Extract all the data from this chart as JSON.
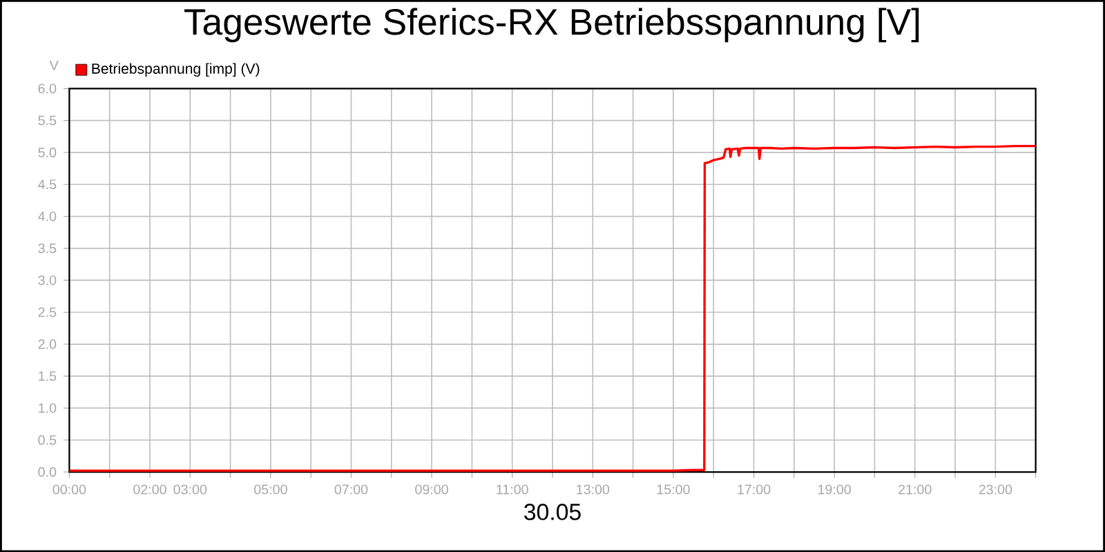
{
  "chart_data": {
    "type": "line",
    "title": "Tageswerte Sferics-RX Betriebsspannung [V]",
    "xlabel": "30.05",
    "ylabel": "V",
    "series": [
      {
        "name": "Betriebspannung [imp] (V)",
        "color": "#ff0000",
        "x": [
          0,
          2,
          4,
          6,
          8,
          10,
          12,
          14,
          15,
          15.5,
          15.77,
          15.78,
          15.9,
          16.0,
          16.15,
          16.25,
          16.3,
          16.4,
          16.42,
          16.45,
          16.6,
          16.63,
          16.66,
          16.8,
          17.0,
          17.12,
          17.14,
          17.17,
          17.4,
          17.7,
          18,
          18.5,
          19,
          19.5,
          20,
          20.5,
          21,
          21.5,
          22,
          22.5,
          23,
          23.5,
          24
        ],
        "values": [
          0.02,
          0.02,
          0.02,
          0.02,
          0.02,
          0.02,
          0.02,
          0.02,
          0.02,
          0.03,
          0.03,
          4.83,
          4.85,
          4.88,
          4.9,
          4.92,
          5.05,
          5.06,
          4.93,
          5.05,
          5.06,
          4.95,
          5.06,
          5.07,
          5.07,
          5.07,
          4.9,
          5.07,
          5.07,
          5.06,
          5.07,
          5.06,
          5.07,
          5.07,
          5.08,
          5.07,
          5.08,
          5.09,
          5.08,
          5.09,
          5.09,
          5.1,
          5.1
        ]
      }
    ],
    "xlim": [
      0,
      24
    ],
    "xticks": [
      {
        "value": 0,
        "label": "00:00"
      },
      {
        "value": 1,
        "label": null
      },
      {
        "value": 2,
        "label": "02:00"
      },
      {
        "value": 3,
        "label": "03:00"
      },
      {
        "value": 4,
        "label": null
      },
      {
        "value": 5,
        "label": "05:00"
      },
      {
        "value": 6,
        "label": null
      },
      {
        "value": 7,
        "label": "07:00"
      },
      {
        "value": 8,
        "label": null
      },
      {
        "value": 9,
        "label": "09:00"
      },
      {
        "value": 10,
        "label": null
      },
      {
        "value": 11,
        "label": "11:00"
      },
      {
        "value": 12,
        "label": null
      },
      {
        "value": 13,
        "label": "13:00"
      },
      {
        "value": 14,
        "label": null
      },
      {
        "value": 15,
        "label": "15:00"
      },
      {
        "value": 16,
        "label": null
      },
      {
        "value": 17,
        "label": "17:00"
      },
      {
        "value": 18,
        "label": null
      },
      {
        "value": 19,
        "label": "19:00"
      },
      {
        "value": 20,
        "label": null
      },
      {
        "value": 21,
        "label": "21:00"
      },
      {
        "value": 22,
        "label": null
      },
      {
        "value": 23,
        "label": "23:00"
      },
      {
        "value": 24,
        "label": null
      }
    ],
    "ylim": [
      0,
      6
    ],
    "yticks": [
      {
        "value": 0,
        "label": "0.0"
      },
      {
        "value": 0.5,
        "label": "0.5"
      },
      {
        "value": 1,
        "label": "1.0"
      },
      {
        "value": 1.5,
        "label": "1.5"
      },
      {
        "value": 2,
        "label": "2.0"
      },
      {
        "value": 2.5,
        "label": "2.5"
      },
      {
        "value": 3,
        "label": "3.0"
      },
      {
        "value": 3.5,
        "label": "3.5"
      },
      {
        "value": 4,
        "label": "4.0"
      },
      {
        "value": 4.5,
        "label": "4.5"
      },
      {
        "value": 5,
        "label": "5.0"
      },
      {
        "value": 5.5,
        "label": "5.5"
      },
      {
        "value": 6,
        "label": "6.0"
      }
    ],
    "grid": true,
    "legend": "top left",
    "marker": "none",
    "line_style": "solid"
  }
}
